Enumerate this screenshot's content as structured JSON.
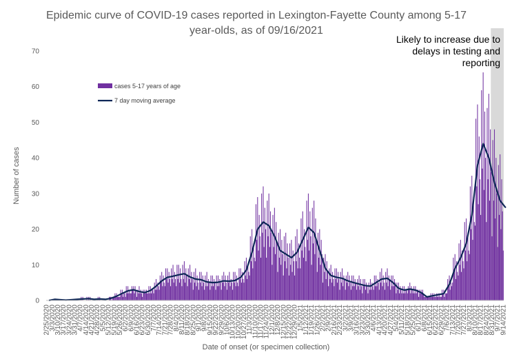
{
  "chart_data": {
    "type": "bar",
    "title_line1": "Epidemic curve of COVID-19 cases reported in Lexington-Fayette County among 5-17",
    "title_line2": "year-olds, as of 09/16/2021",
    "xlabel": "Date of onset (or specimen collection)",
    "ylabel": "Number of cases",
    "ylim": [
      0,
      70
    ],
    "yticks": [
      0,
      10,
      20,
      30,
      40,
      50,
      60,
      70
    ],
    "grid": false,
    "legend_position": "upper-left",
    "annotation": [
      "Likely to increase due to",
      "delays in testing and",
      "reporting"
    ],
    "shaded_range_start": "8/30/2021",
    "shaded_range_end": "9/14/2021",
    "x_start": "2/25/2020",
    "x_end": "9/14/2021",
    "x_tick_labels": [
      "2/25/2020",
      "3/3/2020",
      "3/10/2020",
      "3/17/2020",
      "3/24/2020",
      "3/31/2020",
      "4/7/2020",
      "4/14/2020",
      "4/21/2020",
      "4/28/2020",
      "5/5/2020",
      "5/12/2020",
      "5/19/2020",
      "5/26/2020",
      "6/2/2020",
      "6/9/2020",
      "6/16/2020",
      "6/23/2020",
      "6/30/2020",
      "7/7/2020",
      "7/14/2020",
      "7/21/2020",
      "7/28/2020",
      "8/4/2020",
      "8/11/2020",
      "8/18/2020",
      "8/25/2020",
      "9/1/2020",
      "9/8/2020",
      "9/15/2020",
      "9/22/2020",
      "9/29/2020",
      "10/6/2020",
      "10/13/2020",
      "10/20/2020",
      "10/27/2020",
      "11/3/2020",
      "11/10/2020",
      "11/17/2020",
      "11/24/2020",
      "12/1/2020",
      "12/8/2020",
      "12/15/2020",
      "12/22/2020",
      "12/29/2020",
      "1/5/2021",
      "1/12/2021",
      "1/19/2021",
      "1/26/2021",
      "2/2/2021",
      "2/9/2021",
      "2/16/2021",
      "2/23/2021",
      "3/2/2021",
      "3/9/2021",
      "3/16/2021",
      "3/23/2021",
      "3/30/2021",
      "4/6/2021",
      "4/13/2021",
      "4/20/2021",
      "4/27/2021",
      "5/4/2021",
      "5/11/2021",
      "5/18/2021",
      "5/25/2021",
      "6/1/2021",
      "6/8/2021",
      "6/15/2021",
      "6/22/2021",
      "6/29/2021",
      "7/6/2021",
      "7/13/2021",
      "7/20/2021",
      "7/27/2021",
      "8/3/2021",
      "8/10/2021",
      "8/17/2021",
      "8/24/2021",
      "8/31/2021",
      "9/7/2021",
      "9/14/2021"
    ],
    "series": [
      {
        "name": "cases 5-17 years of age",
        "type": "bar",
        "color": "#7030A0",
        "weekly_average_values": [
          0,
          0.3,
          0.2,
          0.1,
          0.2,
          0.3,
          0.4,
          0.5,
          0.3,
          0.4,
          0.3,
          0.6,
          1.2,
          2.0,
          2.7,
          3.0,
          2.5,
          2.2,
          2.8,
          4.0,
          5.5,
          6.5,
          6.8,
          7.2,
          7.5,
          6.6,
          6.0,
          5.8,
          5.2,
          5.0,
          5.1,
          5.5,
          5.4,
          5.6,
          6.5,
          8.5,
          13.5,
          20.0,
          22.0,
          21.0,
          18.0,
          14.0,
          13.0,
          12.0,
          13.5,
          17.0,
          20.5,
          19.0,
          14.0,
          9.0,
          7.0,
          6.5,
          6.2,
          5.5,
          5.0,
          4.6,
          4.2,
          4.0,
          5.0,
          6.0,
          6.2,
          5.0,
          3.4,
          2.9,
          3.2,
          2.9,
          2.2,
          1.0,
          1.3,
          1.6,
          1.9,
          4.5,
          9.0,
          12.0,
          16.0,
          24.0,
          38.0,
          44.0,
          40.0,
          33.0,
          28.0,
          26.0
        ]
      },
      {
        "name": "7 day moving average",
        "type": "line",
        "color": "#0D2656",
        "weekly_average_values": [
          0,
          0.3,
          0.2,
          0.1,
          0.2,
          0.3,
          0.4,
          0.5,
          0.3,
          0.4,
          0.3,
          0.6,
          1.2,
          2.0,
          2.7,
          3.0,
          2.5,
          2.2,
          2.8,
          4.0,
          5.5,
          6.5,
          6.8,
          7.2,
          7.5,
          6.6,
          6.0,
          5.8,
          5.2,
          5.0,
          5.1,
          5.5,
          5.4,
          5.6,
          6.5,
          8.5,
          13.5,
          20.0,
          22.0,
          21.0,
          18.0,
          14.0,
          13.0,
          12.0,
          13.5,
          17.0,
          20.5,
          19.0,
          14.0,
          9.0,
          7.0,
          6.5,
          6.2,
          5.5,
          5.0,
          4.6,
          4.2,
          4.0,
          5.0,
          6.0,
          6.2,
          5.0,
          3.4,
          2.9,
          3.2,
          2.9,
          2.2,
          1.0,
          1.3,
          1.6,
          1.9,
          4.5,
          9.0,
          12.0,
          16.0,
          24.0,
          38.0,
          44.0,
          40.0,
          33.0,
          28.0,
          26.0
        ]
      }
    ]
  }
}
